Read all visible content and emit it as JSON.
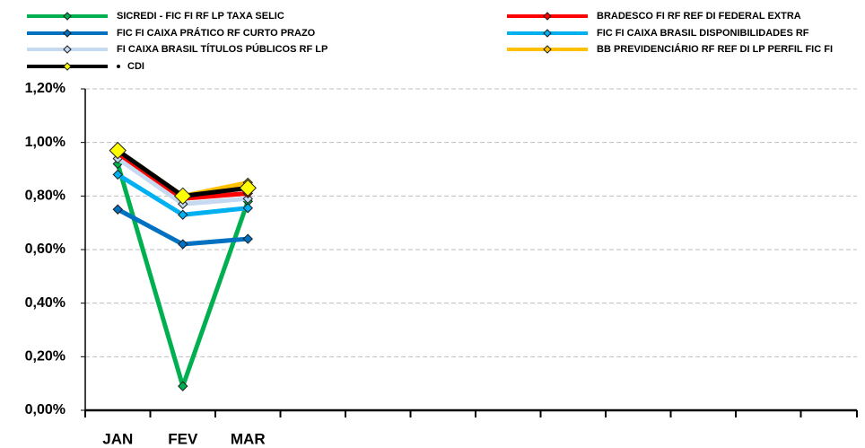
{
  "chart_data": {
    "type": "line",
    "categories": [
      "JAN",
      "FEV",
      "MAR",
      null,
      null,
      null,
      null,
      null,
      null,
      null,
      null,
      null
    ],
    "ylim": [
      0,
      0.012
    ],
    "yticks": [
      {
        "value": 0,
        "label": "0,00%"
      },
      {
        "value": 0.002,
        "label": "0,20%"
      },
      {
        "value": 0.004,
        "label": "0,40%"
      },
      {
        "value": 0.006,
        "label": "0,60%"
      },
      {
        "value": 0.008,
        "label": "0,80%"
      },
      {
        "value": 0.01,
        "label": "1,00%"
      },
      {
        "value": 0.012,
        "label": "1,20%"
      }
    ],
    "grid": true,
    "series": [
      {
        "name": "SICREDI - FIC FI RF LP TAXA SELIC",
        "color": "#00b050",
        "values": [
          0.0092,
          0.0009,
          0.0078,
          null,
          null,
          null,
          null,
          null,
          null,
          null,
          null,
          null
        ]
      },
      {
        "name": "FIC FI CAIXA PRÁTICO RF CURTO PRAZO",
        "color": "#0070c0",
        "values": [
          0.0075,
          0.0062,
          0.0064,
          null,
          null,
          null,
          null,
          null,
          null,
          null,
          null,
          null
        ]
      },
      {
        "name": "FI CAIXA BRASIL TÍTULOS PÚBLICOS RF LP",
        "color": "#c5d9f1",
        "values": [
          0.0094,
          0.0077,
          0.0079,
          null,
          null,
          null,
          null,
          null,
          null,
          null,
          null,
          null
        ]
      },
      {
        "name": "BRADESCO FI RF REF DI FEDERAL EXTRA",
        "color": "#ff0000",
        "values": [
          0.0096,
          0.0079,
          0.0081,
          null,
          null,
          null,
          null,
          null,
          null,
          null,
          null,
          null
        ]
      },
      {
        "name": "FIC FI CAIXA BRASIL DISPONIBILIDADES RF",
        "color": "#00b0f0",
        "values": [
          0.0088,
          0.0073,
          0.00755,
          null,
          null,
          null,
          null,
          null,
          null,
          null,
          null,
          null
        ]
      },
      {
        "name": "BB PREVIDENCIÁRIO RF REF DI LP PERFIL FIC FI",
        "color": "#ffc000",
        "values": [
          0.0097,
          0.008,
          0.0085,
          null,
          null,
          null,
          null,
          null,
          null,
          null,
          null,
          null
        ]
      },
      {
        "name": "CDI",
        "color": "#000000",
        "marker_color": "#ffff00",
        "values": [
          0.0097,
          0.008,
          0.0083,
          null,
          null,
          null,
          null,
          null,
          null,
          null,
          null,
          null
        ]
      }
    ]
  }
}
